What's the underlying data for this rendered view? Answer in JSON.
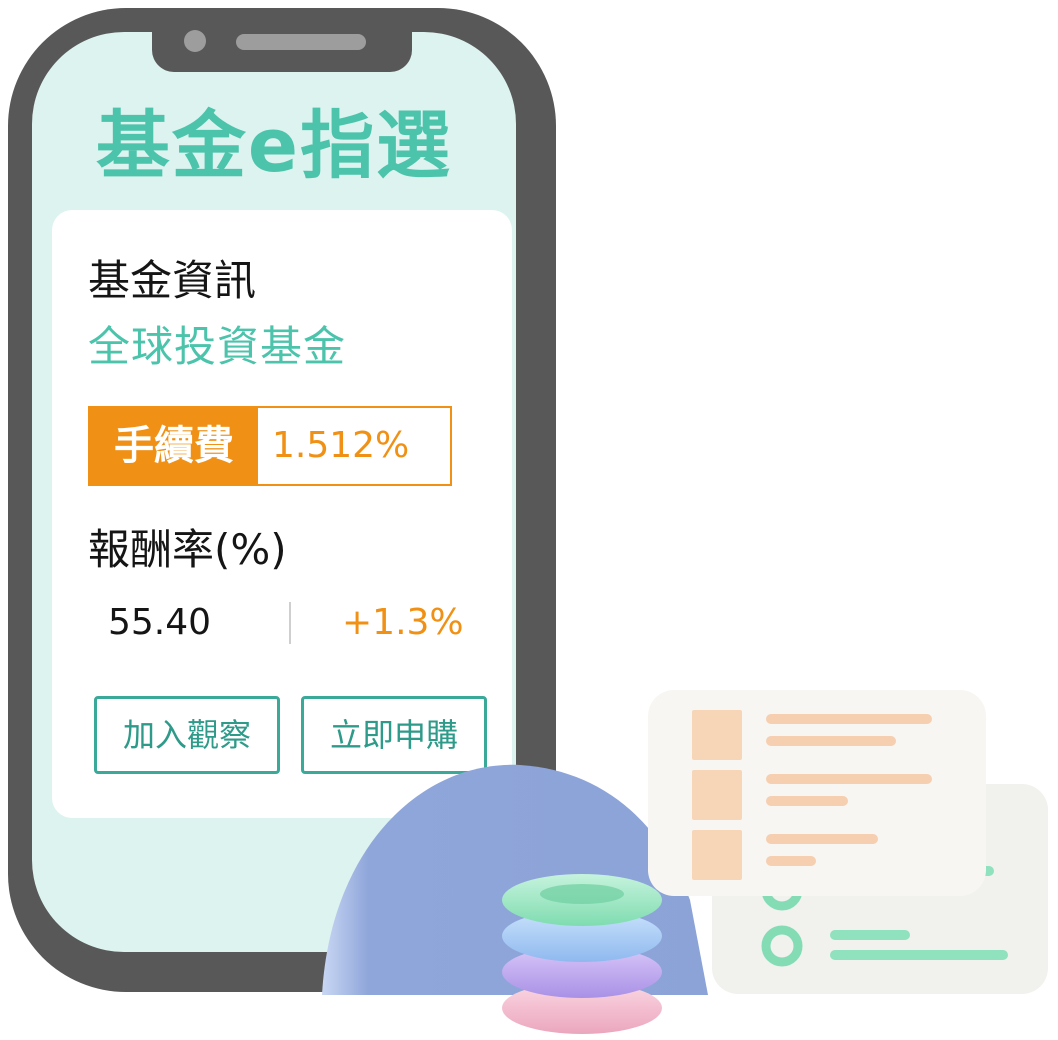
{
  "app": {
    "title": "基金e指選"
  },
  "fund_card": {
    "info_label": "基金資訊",
    "fund_type": "全球投資基金",
    "fee_label": "手續費",
    "fee_value": "1.512%",
    "return_label": "報酬率(%)",
    "nav_value": "55.40",
    "change_value": "+1.3%"
  },
  "actions": {
    "watch_label": "加入觀察",
    "buy_label": "立即申購"
  },
  "colors": {
    "brand_green": "#4cc3ab",
    "accent_orange": "#f09115",
    "phone_frame": "#585858",
    "screen_bg": "#dcf3ef",
    "button_border": "#3ba99a"
  },
  "decoration": {
    "illustration": "stacked-rings-and-cards-icon"
  }
}
